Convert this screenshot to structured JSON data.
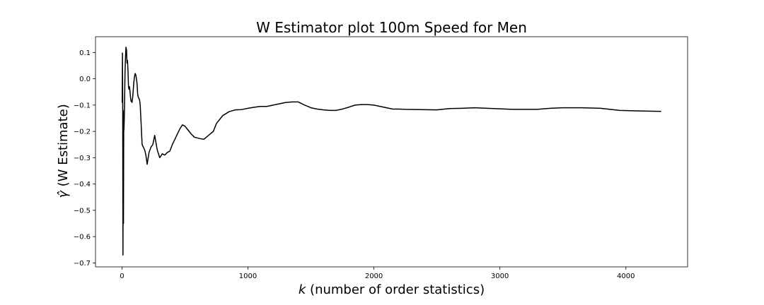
{
  "chart_data": {
    "type": "line",
    "title": "W Estimator plot 100m Speed for Men",
    "xlabel_var": "k",
    "xlabel_rest": " (number of order statistics)",
    "ylabel_var": "γ̂",
    "ylabel_rest": " (W Estimate)",
    "xlim": [
      -210,
      4490
    ],
    "ylim": [
      -0.715,
      0.16
    ],
    "xticks": [
      0,
      1000,
      2000,
      3000,
      4000
    ],
    "yticks": [
      0.1,
      0.0,
      -0.1,
      -0.2,
      -0.3,
      -0.4,
      -0.5,
      -0.6,
      -0.7
    ],
    "ytick_labels": [
      "0.1",
      "0.0",
      "−0.1",
      "−0.2",
      "−0.3",
      "−0.4",
      "−0.5",
      "−0.6",
      "−0.7"
    ],
    "grid": false,
    "series": [
      {
        "color": "#000000",
        "x": [
          2,
          4,
          6,
          8,
          10,
          12,
          14,
          16,
          18,
          20,
          24,
          28,
          32,
          36,
          40,
          44,
          48,
          52,
          56,
          60,
          64,
          68,
          72,
          76,
          80,
          85,
          90,
          95,
          100,
          105,
          110,
          115,
          120,
          125,
          130,
          135,
          140,
          145,
          150,
          155,
          160,
          165,
          170,
          180,
          190,
          200,
          215,
          230,
          245,
          260,
          280,
          300,
          320,
          340,
          360,
          380,
          400,
          420,
          440,
          460,
          480,
          500,
          525,
          550,
          575,
          600,
          625,
          650,
          675,
          700,
          725,
          750,
          800,
          850,
          900,
          950,
          1000,
          1050,
          1100,
          1150,
          1200,
          1250,
          1300,
          1350,
          1400,
          1450,
          1500,
          1550,
          1600,
          1650,
          1700,
          1750,
          1800,
          1850,
          1900,
          1950,
          2000,
          2050,
          2100,
          2150,
          2200,
          2250,
          2500,
          2600,
          2700,
          2800,
          2900,
          3000,
          3100,
          3200,
          3300,
          3400,
          3500,
          3650,
          3800,
          3950,
          4100,
          4280
        ],
        "y": [
          -0.09,
          0.098,
          -0.12,
          -0.67,
          -0.12,
          -0.55,
          -0.2,
          -0.19,
          -0.16,
          -0.12,
          0.02,
          0.08,
          0.12,
          0.11,
          0.06,
          0.07,
          0.03,
          -0.03,
          -0.04,
          -0.03,
          -0.05,
          -0.07,
          -0.085,
          -0.085,
          -0.09,
          -0.07,
          -0.04,
          -0.01,
          0.01,
          0.02,
          0.015,
          0.0,
          -0.02,
          -0.06,
          -0.07,
          -0.075,
          -0.08,
          -0.1,
          -0.15,
          -0.2,
          -0.25,
          -0.255,
          -0.26,
          -0.27,
          -0.29,
          -0.325,
          -0.28,
          -0.26,
          -0.25,
          -0.215,
          -0.27,
          -0.3,
          -0.285,
          -0.29,
          -0.28,
          -0.275,
          -0.25,
          -0.23,
          -0.21,
          -0.19,
          -0.175,
          -0.18,
          -0.195,
          -0.21,
          -0.222,
          -0.225,
          -0.228,
          -0.23,
          -0.22,
          -0.21,
          -0.2,
          -0.17,
          -0.14,
          -0.125,
          -0.118,
          -0.117,
          -0.112,
          -0.108,
          -0.105,
          -0.105,
          -0.1,
          -0.095,
          -0.09,
          -0.088,
          -0.088,
          -0.1,
          -0.11,
          -0.115,
          -0.118,
          -0.12,
          -0.12,
          -0.115,
          -0.108,
          -0.1,
          -0.098,
          -0.098,
          -0.1,
          -0.105,
          -0.11,
          -0.115,
          -0.115,
          -0.116,
          -0.118,
          -0.113,
          -0.112,
          -0.11,
          -0.112,
          -0.114,
          -0.116,
          -0.116,
          -0.116,
          -0.112,
          -0.11,
          -0.11,
          -0.112,
          -0.12,
          -0.122,
          -0.124
        ]
      }
    ]
  }
}
